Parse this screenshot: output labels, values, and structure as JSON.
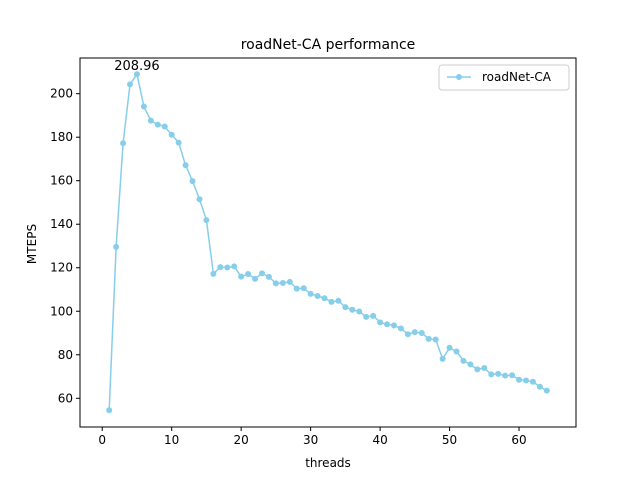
{
  "chart_data": {
    "type": "line",
    "title": "roadNet-CA performance",
    "xlabel": "threads",
    "ylabel": "MTEPS",
    "xlim": [
      -3.2,
      68.2
    ],
    "ylim": [
      46.8,
      216.4
    ],
    "xticks": [
      0,
      10,
      20,
      30,
      40,
      50,
      60
    ],
    "yticks": [
      60,
      80,
      100,
      120,
      140,
      160,
      180,
      200
    ],
    "grid": false,
    "legend_position": "upper right",
    "annotation": {
      "text": "208.96",
      "x": 5,
      "y": 208.96
    },
    "series": [
      {
        "name": "roadNet-CA",
        "color": "#87ceeb",
        "marker": "circle",
        "x": [
          1,
          2,
          3,
          4,
          5,
          6,
          7,
          8,
          9,
          10,
          11,
          12,
          13,
          14,
          15,
          16,
          17,
          18,
          19,
          20,
          21,
          22,
          23,
          24,
          25,
          26,
          27,
          28,
          29,
          30,
          31,
          32,
          33,
          34,
          35,
          36,
          37,
          38,
          39,
          40,
          41,
          42,
          43,
          44,
          45,
          46,
          47,
          48,
          49,
          50,
          51,
          52,
          53,
          54,
          55,
          56,
          57,
          58,
          59,
          60,
          61,
          62,
          63,
          64
        ],
        "y": [
          54.5,
          129.6,
          177.2,
          204.3,
          208.96,
          194.1,
          187.6,
          185.8,
          184.9,
          181.1,
          177.5,
          167.1,
          159.8,
          151.5,
          141.9,
          117.2,
          120.3,
          120.1,
          120.6,
          115.9,
          117.1,
          114.9,
          117.4,
          115.8,
          112.8,
          113.0,
          113.5,
          110.4,
          110.6,
          108.0,
          107.0,
          106.0,
          104.3,
          104.8,
          101.9,
          100.7,
          99.9,
          97.4,
          97.9,
          94.9,
          94.0,
          93.5,
          92.1,
          89.4,
          90.4,
          90.0,
          87.3,
          87.0,
          78.1,
          83.2,
          81.5,
          77.2,
          75.6,
          73.3,
          73.9,
          71.0,
          71.2,
          70.4,
          70.6,
          68.5,
          68.2,
          67.6,
          65.3,
          63.5
        ]
      }
    ]
  }
}
